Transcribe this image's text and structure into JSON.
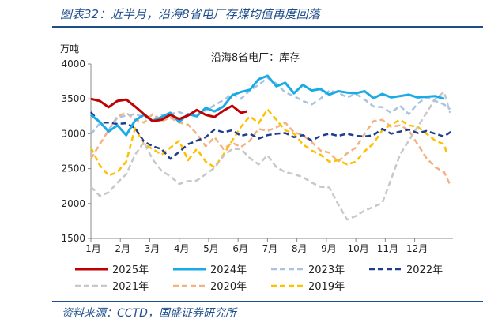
{
  "header": {
    "title": "图表32：近半月，沿海8省电厂存煤均值再度回落"
  },
  "footer": {
    "source": "资料来源：CCTD，国盛证券研究所"
  },
  "chart_data": {
    "type": "line",
    "title": "沿海8省电厂：库存",
    "ylabel": "万吨",
    "xlabel": "",
    "ylim": [
      1500,
      4000
    ],
    "yticks": [
      1500,
      2000,
      2500,
      3000,
      3500,
      4000
    ],
    "xlim": [
      1,
      13.3
    ],
    "categories": [
      "1月",
      "2月",
      "3月",
      "4月",
      "5月",
      "6月",
      "7月",
      "8月",
      "9月",
      "10月",
      "11月",
      "12月"
    ],
    "grid": false,
    "legend_position": "bottom",
    "series": [
      {
        "name": "2025年",
        "color": "#c00000",
        "dash": "solid",
        "width": 3,
        "x": [
          1.0,
          1.3,
          1.6,
          1.9,
          2.2,
          2.5,
          2.8,
          3.1,
          3.4,
          3.7,
          4.0,
          4.3,
          4.6,
          4.9,
          5.2,
          5.5,
          5.8,
          6.1,
          6.3
        ],
        "y": [
          3500,
          3470,
          3380,
          3470,
          3490,
          3390,
          3280,
          3180,
          3200,
          3270,
          3210,
          3260,
          3340,
          3270,
          3240,
          3330,
          3400,
          3300,
          3320
        ]
      },
      {
        "name": "2024年",
        "color": "#1aabe6",
        "dash": "solid",
        "width": 3,
        "x": [
          1.0,
          1.3,
          1.6,
          1.9,
          2.2,
          2.5,
          2.8,
          3.1,
          3.4,
          3.7,
          4.0,
          4.3,
          4.6,
          4.9,
          5.2,
          5.5,
          5.8,
          6.1,
          6.4,
          6.7,
          7.0,
          7.3,
          7.6,
          7.9,
          8.2,
          8.5,
          8.8,
          9.1,
          9.4,
          9.7,
          10.0,
          10.3,
          10.6,
          10.9,
          11.2,
          11.5,
          11.8,
          12.1,
          12.4,
          12.7,
          13.0
        ],
        "y": [
          3270,
          3170,
          3030,
          3120,
          2980,
          3190,
          3270,
          3180,
          3240,
          3300,
          3170,
          3280,
          3250,
          3370,
          3320,
          3390,
          3550,
          3600,
          3630,
          3780,
          3830,
          3680,
          3730,
          3580,
          3700,
          3620,
          3640,
          3560,
          3610,
          3590,
          3580,
          3610,
          3510,
          3570,
          3520,
          3540,
          3560,
          3520,
          3530,
          3540,
          3500
        ]
      },
      {
        "name": "2023年",
        "color": "#a9c4e0",
        "dash": "dash",
        "width": 2.5,
        "x": [
          1.0,
          1.3,
          1.6,
          1.9,
          2.2,
          2.5,
          2.8,
          3.1,
          3.4,
          3.7,
          4.0,
          4.3,
          4.6,
          4.9,
          5.2,
          5.5,
          5.8,
          6.1,
          6.4,
          6.7,
          7.0,
          7.3,
          7.6,
          7.9,
          8.2,
          8.5,
          8.8,
          9.1,
          9.4,
          9.7,
          10.0,
          10.3,
          10.6,
          10.9,
          11.2,
          11.5,
          11.8,
          12.1,
          12.4,
          12.7,
          13.0,
          13.2
        ],
        "y": [
          2990,
          3150,
          3050,
          3230,
          3260,
          3280,
          3240,
          3200,
          3270,
          3280,
          3310,
          3260,
          3330,
          3330,
          3410,
          3480,
          3570,
          3500,
          3620,
          3700,
          3800,
          3720,
          3590,
          3540,
          3470,
          3420,
          3500,
          3620,
          3590,
          3520,
          3570,
          3490,
          3390,
          3380,
          3300,
          3400,
          3280,
          3430,
          3520,
          3470,
          3420,
          3350
        ]
      },
      {
        "name": "2022年",
        "color": "#1f3d8f",
        "dash": "dash",
        "width": 2.5,
        "x": [
          1.0,
          1.3,
          1.6,
          1.9,
          2.2,
          2.5,
          2.8,
          3.1,
          3.4,
          3.7,
          4.0,
          4.3,
          4.6,
          4.9,
          5.2,
          5.5,
          5.8,
          6.1,
          6.4,
          6.7,
          7.0,
          7.3,
          7.6,
          7.9,
          8.2,
          8.5,
          8.8,
          9.1,
          9.4,
          9.7,
          10.0,
          10.3,
          10.6,
          10.9,
          11.2,
          11.5,
          11.8,
          12.1,
          12.4,
          12.7,
          13.0,
          13.3
        ],
        "y": [
          3310,
          3160,
          3160,
          3140,
          3150,
          3080,
          2890,
          2820,
          2780,
          2640,
          2740,
          2850,
          2900,
          2950,
          3060,
          3020,
          3050,
          2970,
          3000,
          2930,
          2980,
          3000,
          3010,
          2950,
          2980,
          2900,
          2970,
          3000,
          2970,
          3000,
          2970,
          2960,
          2980,
          3070,
          3000,
          3030,
          3060,
          3010,
          3040,
          3000,
          2960,
          3050
        ]
      },
      {
        "name": "2021年",
        "color": "#c8c8c8",
        "dash": "dash",
        "width": 2.5,
        "x": [
          1.0,
          1.3,
          1.6,
          1.9,
          2.2,
          2.5,
          2.8,
          3.1,
          3.4,
          3.7,
          4.0,
          4.3,
          4.6,
          4.9,
          5.2,
          5.5,
          5.8,
          6.1,
          6.4,
          6.7,
          7.0,
          7.3,
          7.6,
          7.9,
          8.2,
          8.5,
          8.8,
          9.1,
          9.4,
          9.7,
          10.0,
          10.3,
          10.6,
          10.9,
          11.2,
          11.5,
          11.8,
          12.1,
          12.4,
          12.7,
          13.0,
          13.2
        ],
        "y": [
          2240,
          2110,
          2160,
          2300,
          2420,
          2700,
          2880,
          2630,
          2470,
          2390,
          2280,
          2320,
          2330,
          2420,
          2510,
          2680,
          2780,
          2780,
          2650,
          2560,
          2690,
          2520,
          2450,
          2420,
          2380,
          2300,
          2240,
          2230,
          1990,
          1770,
          1820,
          1900,
          1950,
          2010,
          2350,
          2700,
          2900,
          3100,
          3300,
          3500,
          3600,
          3300
        ]
      },
      {
        "name": "2020年",
        "color": "#f4b183",
        "dash": "dash",
        "width": 2.5,
        "x": [
          1.0,
          1.3,
          1.6,
          1.9,
          2.2,
          2.5,
          2.8,
          3.1,
          3.4,
          3.7,
          4.0,
          4.3,
          4.6,
          4.9,
          5.2,
          5.5,
          5.8,
          6.1,
          6.4,
          6.7,
          7.0,
          7.3,
          7.6,
          7.9,
          8.2,
          8.5,
          8.8,
          9.1,
          9.4,
          9.7,
          10.0,
          10.3,
          10.6,
          10.9,
          11.2,
          11.5,
          11.8,
          12.1,
          12.4,
          12.7,
          13.0,
          13.2
        ],
        "y": [
          2640,
          2850,
          3050,
          3250,
          3300,
          3200,
          3160,
          3280,
          3180,
          3230,
          3160,
          3130,
          3000,
          2820,
          2950,
          2780,
          2870,
          2810,
          2900,
          3070,
          3040,
          3090,
          3160,
          3020,
          2980,
          2880,
          2760,
          2730,
          2600,
          2720,
          2800,
          3000,
          3180,
          3200,
          3100,
          3120,
          3050,
          2850,
          2650,
          2520,
          2450,
          2270
        ]
      },
      {
        "name": "2019年",
        "color": "#ffc000",
        "dash": "dash",
        "width": 2.5,
        "x": [
          1.0,
          1.3,
          1.6,
          1.9,
          2.2,
          2.5,
          2.8,
          3.1,
          3.4,
          3.7,
          4.0,
          4.3,
          4.6,
          4.9,
          5.2,
          5.5,
          5.8,
          6.1,
          6.4,
          6.7,
          7.0,
          7.3,
          7.6,
          7.9,
          8.2,
          8.5,
          8.8,
          9.1,
          9.4,
          9.7,
          10.0,
          10.3,
          10.6,
          10.9,
          11.2,
          11.5,
          11.8,
          12.1,
          12.4,
          12.7,
          13.0,
          13.1
        ],
        "y": [
          2800,
          2550,
          2400,
          2450,
          2600,
          3080,
          2850,
          2780,
          2700,
          2800,
          2900,
          2620,
          2780,
          2600,
          2520,
          2700,
          2900,
          3100,
          3250,
          3150,
          3350,
          3200,
          3050,
          3000,
          2850,
          2760,
          2700,
          2600,
          2620,
          2560,
          2600,
          2750,
          2860,
          3050,
          3130,
          3200,
          3120,
          3100,
          3000,
          2900,
          2850,
          2700
        ]
      }
    ]
  }
}
